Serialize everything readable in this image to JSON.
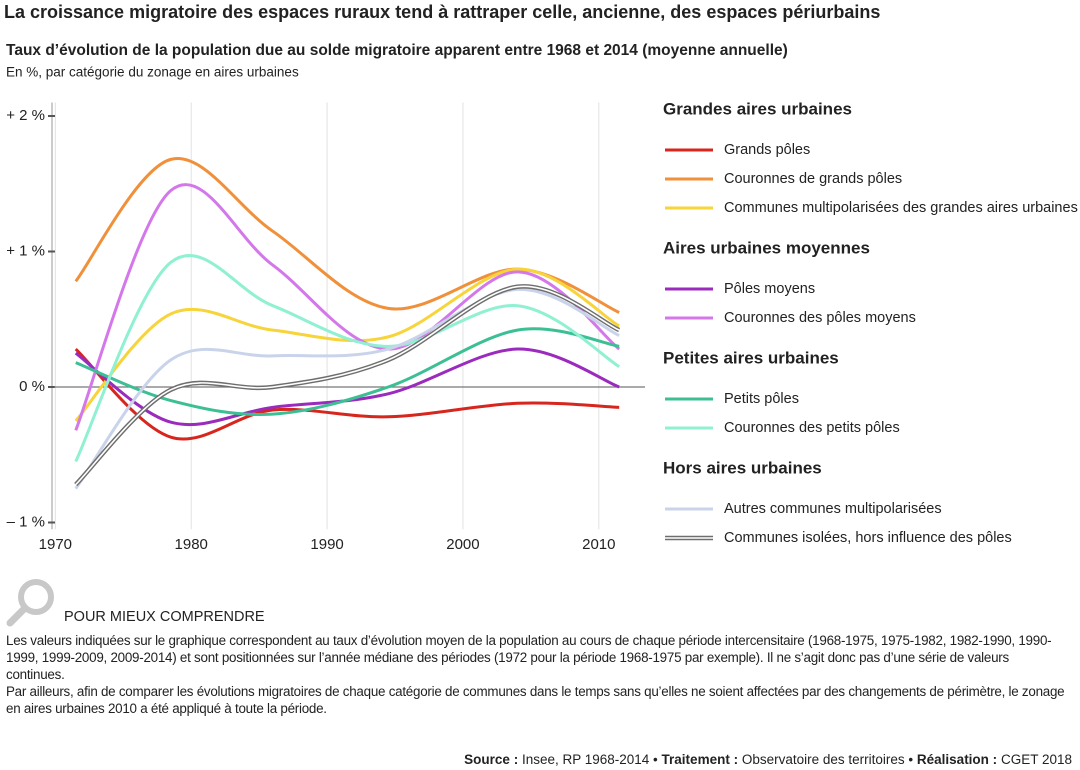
{
  "header": {
    "title": "La croissance migratoire des espaces ruraux tend à rattraper celle, ancienne, des espaces périurbains"
  },
  "chart_data": {
    "type": "line",
    "title": "Taux d’évolution de la population due au solde migratoire apparent entre 1968 et 2014 (moyenne annuelle)",
    "subtitle": "En %, par catégorie du zonage en aires urbaines",
    "x": [
      1971.5,
      1978.5,
      1986,
      1994.5,
      2004,
      2011.5
    ],
    "xlim": [
      1969.9,
      2013.4
    ],
    "xticks": [
      1970,
      1980,
      1990,
      2000,
      2010
    ],
    "ylim": [
      -1.05,
      2.1
    ],
    "yticks": [
      {
        "value": -1,
        "label": "– 1 %"
      },
      {
        "value": 0,
        "label": "0 %"
      },
      {
        "value": 1,
        "label": "+ 1 %"
      },
      {
        "value": 2,
        "label": "+ 2 %"
      }
    ],
    "grid": true,
    "groups": [
      {
        "title": "Grandes aires urbaines",
        "series": [
          {
            "name": "Grands pôles",
            "color": "#d7261e",
            "values": [
              0.28,
              -0.37,
              -0.17,
              -0.22,
              -0.12,
              -0.15
            ]
          },
          {
            "name": "Couronnes de grands pôles",
            "color": "#f0903a",
            "values": [
              0.78,
              1.68,
              1.15,
              0.58,
              0.87,
              0.55
            ]
          },
          {
            "name": "Communes multipolarisées des grandes aires urbaines",
            "color": "#f7d43a",
            "values": [
              -0.25,
              0.54,
              0.42,
              0.37,
              0.87,
              0.45
            ]
          }
        ]
      },
      {
        "title": "Aires urbaines moyennes",
        "series": [
          {
            "name": "Pôles moyens",
            "color": "#9b2bbd",
            "values": [
              0.25,
              -0.26,
              -0.15,
              -0.05,
              0.28,
              0.0
            ]
          },
          {
            "name": "Couronnes des pôles moyens",
            "color": "#d477ea",
            "values": [
              -0.32,
              1.45,
              0.9,
              0.28,
              0.85,
              0.28
            ]
          }
        ]
      },
      {
        "title": "Petites aires urbaines",
        "series": [
          {
            "name": "Petits pôles",
            "color": "#3cbf95",
            "values": [
              0.18,
              -0.1,
              -0.2,
              0.0,
              0.42,
              0.3
            ]
          },
          {
            "name": "Couronnes des petits pôles",
            "color": "#8ff0d2",
            "values": [
              -0.55,
              0.92,
              0.6,
              0.3,
              0.6,
              0.15
            ]
          }
        ]
      },
      {
        "title": "Hors aires urbaines",
        "series": [
          {
            "name": "Autres communes multipolarisées",
            "color": "#c9d3ea",
            "values": [
              -0.75,
              0.2,
              0.23,
              0.28,
              0.72,
              0.38
            ]
          },
          {
            "name": "Communes isolées, hors influence des pôles",
            "color": "#6e6e6e",
            "line_style": "double",
            "values": [
              -0.72,
              -0.02,
              0.0,
              0.2,
              0.74,
              0.42
            ]
          }
        ]
      }
    ]
  },
  "note": {
    "heading": "POUR MIEUX COMPRENDRE",
    "paragraphs": [
      "Les valeurs indiquées sur le graphique correspondent au taux d’évolution moyen de la population au cours de chaque période intercensitaire (1968-1975, 1975-1982, 1982-1990, 1990-1999, 1999-2009, 2009-2014) et sont positionnées sur l’année médiane des périodes (1972 pour la période 1968-1975 par exemple). Il ne s’agit donc pas d’une série de valeurs continues.",
      "Par ailleurs, afin de comparer les évolutions migratoires de chaque catégorie de communes dans le temps sans qu’elles ne soient affectées par des changements de périmètre, le zonage en aires urbaines 2010 a été appliqué à toute la période."
    ]
  },
  "source": {
    "parts": [
      "Source :",
      "Insee, RP 1968-2014 •",
      "Traitement :",
      "Observatoire des territoires •",
      "Réalisation :",
      "CGET 2018"
    ]
  }
}
